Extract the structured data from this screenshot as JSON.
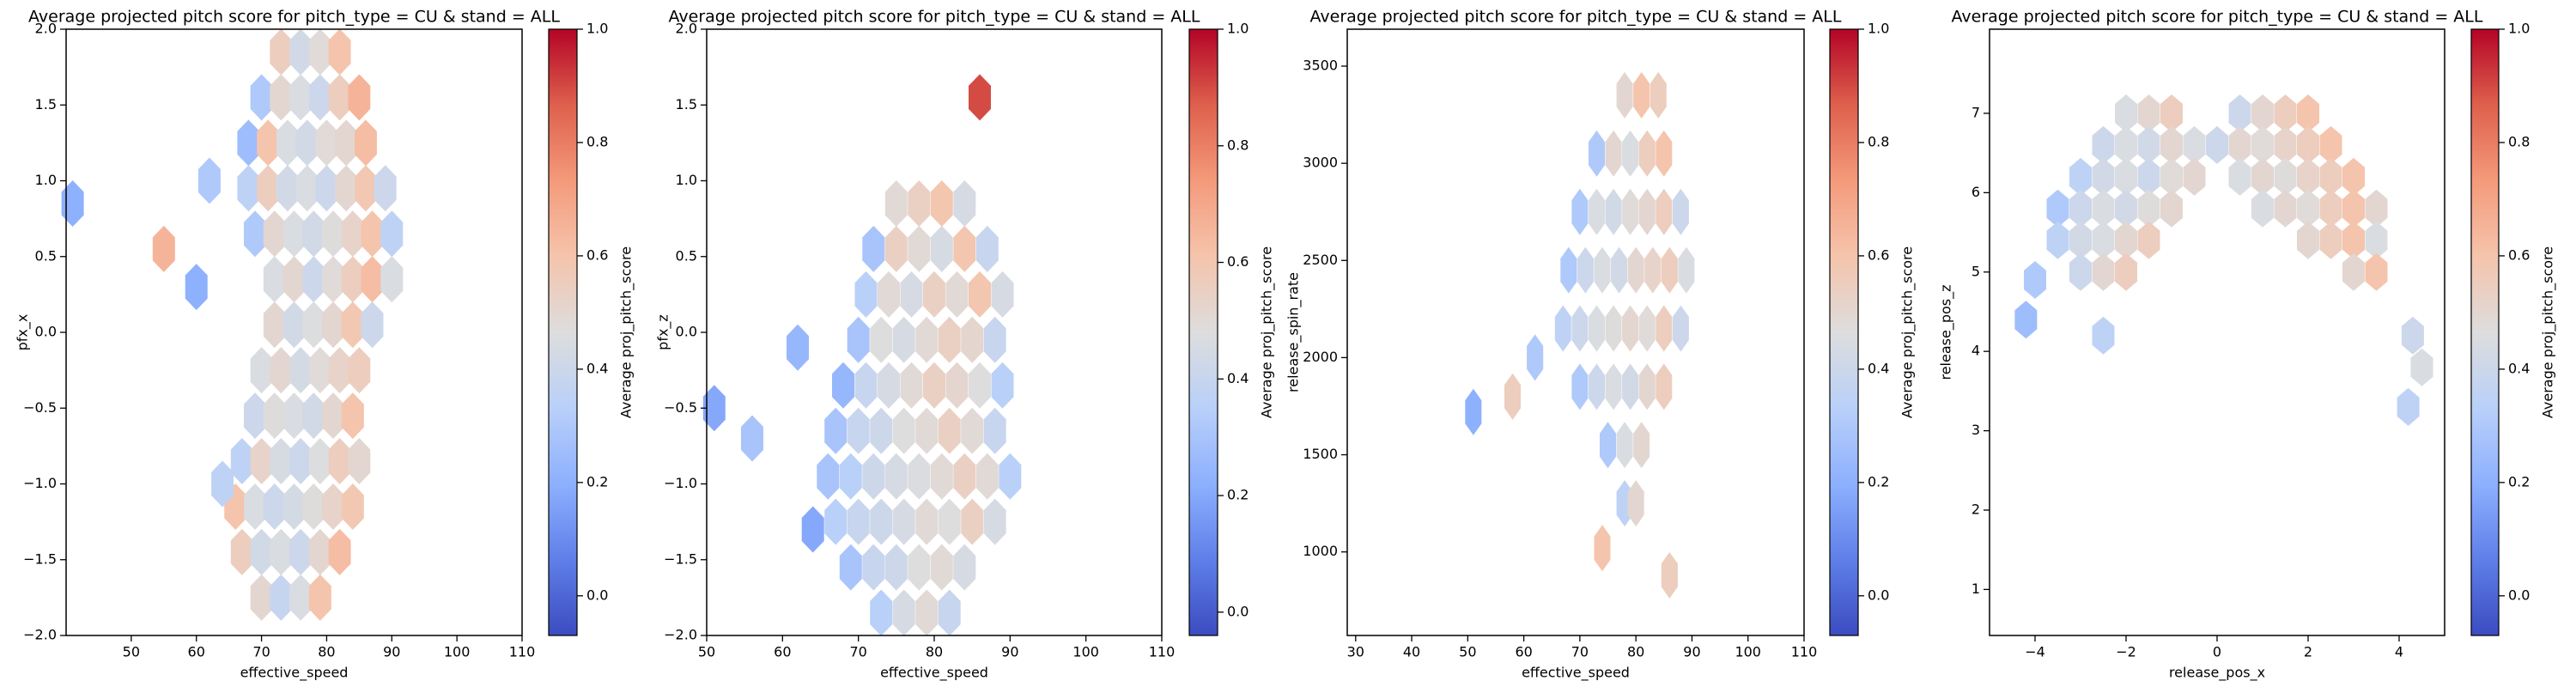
{
  "chart_data": [
    {
      "type": "hexbin",
      "title": "Average projected pitch score for pitch_type = CU & stand = ALL",
      "xlabel": "effective_speed",
      "ylabel": "pfx_x",
      "xlim": [
        40,
        110
      ],
      "ylim": [
        -2,
        2
      ],
      "xticks": [
        50,
        60,
        70,
        80,
        90,
        100,
        110
      ],
      "yticks": [
        {
          "value": -2,
          "label": "−2.0"
        },
        {
          "value": -1.5,
          "label": "−1.5"
        },
        {
          "value": -1,
          "label": "−1.0"
        },
        {
          "value": -0.5,
          "label": "−0.5"
        },
        {
          "value": 0,
          "label": "0.0"
        },
        0.5,
        {
          "value": 1,
          "label": "1.0"
        },
        1.5,
        {
          "value": 2,
          "label": "2.0"
        }
      ],
      "x": [
        73,
        76,
        79,
        82,
        70,
        73,
        76,
        79,
        82,
        85,
        68,
        71,
        74,
        77,
        80,
        83,
        86,
        68,
        71,
        74,
        77,
        80,
        83,
        86,
        89,
        69,
        72,
        75,
        78,
        81,
        84,
        87,
        90,
        72,
        75,
        78,
        81,
        84,
        87,
        90,
        72,
        75,
        78,
        81,
        84,
        87,
        70,
        73,
        76,
        79,
        82,
        85,
        69,
        72,
        75,
        78,
        81,
        84,
        67,
        70,
        73,
        76,
        79,
        82,
        85,
        66,
        69,
        72,
        75,
        78,
        81,
        84,
        67,
        70,
        73,
        76,
        79,
        82,
        70,
        73,
        76,
        79,
        62,
        55,
        41,
        64,
        60
      ],
      "y": [
        1.85,
        1.85,
        1.85,
        1.85,
        1.55,
        1.55,
        1.55,
        1.55,
        1.55,
        1.55,
        1.25,
        1.25,
        1.25,
        1.25,
        1.25,
        1.25,
        1.25,
        0.95,
        0.95,
        0.95,
        0.95,
        0.95,
        0.95,
        0.95,
        0.95,
        0.65,
        0.65,
        0.65,
        0.65,
        0.65,
        0.65,
        0.65,
        0.65,
        0.35,
        0.35,
        0.35,
        0.35,
        0.35,
        0.35,
        0.35,
        0.05,
        0.05,
        0.05,
        0.05,
        0.05,
        0.05,
        -0.25,
        -0.25,
        -0.25,
        -0.25,
        -0.25,
        -0.25,
        -0.55,
        -0.55,
        -0.55,
        -0.55,
        -0.55,
        -0.55,
        -0.85,
        -0.85,
        -0.85,
        -0.85,
        -0.85,
        -0.85,
        -0.85,
        -1.15,
        -1.15,
        -1.15,
        -1.15,
        -1.15,
        -1.15,
        -1.15,
        -1.45,
        -1.45,
        -1.45,
        -1.45,
        -1.45,
        -1.45,
        -1.75,
        -1.75,
        -1.75,
        -1.75,
        1.0,
        0.55,
        0.85,
        -1.0,
        0.3
      ],
      "values": [
        0.55,
        0.42,
        0.48,
        0.6,
        0.3,
        0.5,
        0.45,
        0.4,
        0.55,
        0.65,
        0.25,
        0.6,
        0.45,
        0.42,
        0.48,
        0.5,
        0.62,
        0.35,
        0.55,
        0.42,
        0.45,
        0.4,
        0.5,
        0.58,
        0.4,
        0.3,
        0.5,
        0.45,
        0.42,
        0.47,
        0.52,
        0.6,
        0.35,
        0.45,
        0.5,
        0.4,
        0.48,
        0.55,
        0.62,
        0.45,
        0.5,
        0.42,
        0.46,
        0.5,
        0.58,
        0.4,
        0.45,
        0.5,
        0.43,
        0.48,
        0.52,
        0.55,
        0.4,
        0.47,
        0.45,
        0.42,
        0.5,
        0.6,
        0.35,
        0.52,
        0.44,
        0.4,
        0.46,
        0.55,
        0.5,
        0.6,
        0.45,
        0.4,
        0.43,
        0.47,
        0.52,
        0.58,
        0.55,
        0.42,
        0.45,
        0.4,
        0.5,
        0.62,
        0.5,
        0.38,
        0.45,
        0.6,
        0.3,
        0.65,
        0.2,
        0.35,
        0.2
      ],
      "colorbar": {
        "label": "Average proj_pitch_score",
        "lim": [
          -0.07,
          1
        ],
        "ticks": [
          {
            "value": 0,
            "label": "0.0"
          },
          0.2,
          0.4,
          0.6,
          0.8,
          {
            "value": 1,
            "label": "1.0"
          }
        ]
      }
    },
    {
      "type": "hexbin",
      "title": "Average projected pitch score for pitch_type = CU & stand = ALL",
      "xlabel": "effective_speed",
      "ylabel": "pfx_z",
      "xlim": [
        50,
        110
      ],
      "ylim": [
        -2,
        2
      ],
      "xticks": [
        50,
        60,
        70,
        80,
        90,
        100,
        110
      ],
      "yticks": [
        {
          "value": -2,
          "label": "−2.0"
        },
        {
          "value": -1.5,
          "label": "−1.5"
        },
        {
          "value": -1,
          "label": "−1.0"
        },
        {
          "value": -0.5,
          "label": "−0.5"
        },
        {
          "value": 0,
          "label": "0.0"
        },
        0.5,
        {
          "value": 1,
          "label": "1.0"
        },
        1.5,
        {
          "value": 2,
          "label": "2.0"
        }
      ],
      "x": [
        75,
        78,
        81,
        84,
        72,
        75,
        78,
        81,
        84,
        87,
        71,
        74,
        77,
        80,
        83,
        86,
        89,
        70,
        73,
        76,
        79,
        82,
        85,
        88,
        68,
        71,
        74,
        77,
        80,
        83,
        86,
        89,
        67,
        70,
        73,
        76,
        79,
        82,
        85,
        88,
        66,
        69,
        72,
        75,
        78,
        81,
        84,
        87,
        90,
        67,
        70,
        73,
        76,
        79,
        82,
        85,
        88,
        69,
        72,
        75,
        78,
        81,
        84,
        73,
        76,
        79,
        82,
        51,
        56,
        62,
        86,
        64
      ],
      "y": [
        0.85,
        0.85,
        0.85,
        0.85,
        0.55,
        0.55,
        0.55,
        0.55,
        0.55,
        0.55,
        0.25,
        0.25,
        0.25,
        0.25,
        0.25,
        0.25,
        0.25,
        -0.05,
        -0.05,
        -0.05,
        -0.05,
        -0.05,
        -0.05,
        -0.05,
        -0.35,
        -0.35,
        -0.35,
        -0.35,
        -0.35,
        -0.35,
        -0.35,
        -0.35,
        -0.65,
        -0.65,
        -0.65,
        -0.65,
        -0.65,
        -0.65,
        -0.65,
        -0.65,
        -0.95,
        -0.95,
        -0.95,
        -0.95,
        -0.95,
        -0.95,
        -0.95,
        -0.95,
        -0.95,
        -1.25,
        -1.25,
        -1.25,
        -1.25,
        -1.25,
        -1.25,
        -1.25,
        -1.25,
        -1.55,
        -1.55,
        -1.55,
        -1.55,
        -1.55,
        -1.55,
        -1.85,
        -1.85,
        -1.85,
        -1.85,
        -0.5,
        -0.7,
        -0.1,
        1.55,
        -1.3
      ],
      "values": [
        0.5,
        0.55,
        0.6,
        0.45,
        0.3,
        0.55,
        0.5,
        0.45,
        0.6,
        0.4,
        0.35,
        0.5,
        0.45,
        0.55,
        0.5,
        0.6,
        0.45,
        0.3,
        0.48,
        0.45,
        0.5,
        0.55,
        0.52,
        0.4,
        0.25,
        0.4,
        0.45,
        0.5,
        0.55,
        0.52,
        0.48,
        0.35,
        0.3,
        0.4,
        0.42,
        0.48,
        0.5,
        0.55,
        0.5,
        0.4,
        0.3,
        0.35,
        0.42,
        0.45,
        0.47,
        0.5,
        0.55,
        0.5,
        0.35,
        0.35,
        0.4,
        0.42,
        0.45,
        0.5,
        0.48,
        0.55,
        0.45,
        0.3,
        0.4,
        0.42,
        0.48,
        0.5,
        0.45,
        0.35,
        0.45,
        0.5,
        0.4,
        0.2,
        0.3,
        0.25,
        0.9,
        0.2
      ],
      "colorbar": {
        "label": "Average proj_pitch_score",
        "lim": [
          -0.04,
          1
        ],
        "ticks": [
          {
            "value": 0,
            "label": "0.0"
          },
          0.2,
          0.4,
          0.6,
          0.8,
          {
            "value": 1,
            "label": "1.0"
          }
        ]
      }
    },
    {
      "type": "hexbin",
      "title": "Average projected pitch score for pitch_type = CU & stand = ALL",
      "xlabel": "effective_speed",
      "ylabel": "release_spin_rate",
      "xlim": [
        28.5,
        110
      ],
      "ylim": [
        570,
        3690
      ],
      "xticks": [
        30,
        40,
        50,
        60,
        70,
        80,
        90,
        100,
        110
      ],
      "yticks": [
        1000,
        1500,
        2000,
        2500,
        3000,
        3500
      ],
      "x": [
        78,
        81,
        84,
        73,
        76,
        79,
        82,
        85,
        70,
        73,
        76,
        79,
        82,
        85,
        88,
        68,
        71,
        74,
        77,
        80,
        83,
        86,
        89,
        67,
        70,
        73,
        76,
        79,
        82,
        85,
        88,
        70,
        73,
        76,
        79,
        82,
        85,
        75,
        78,
        81,
        78,
        80,
        51,
        58,
        62,
        74,
        86
      ],
      "y": [
        3350,
        3350,
        3350,
        3050,
        3050,
        3050,
        3050,
        3050,
        2750,
        2750,
        2750,
        2750,
        2750,
        2750,
        2750,
        2450,
        2450,
        2450,
        2450,
        2450,
        2450,
        2450,
        2450,
        2150,
        2150,
        2150,
        2150,
        2150,
        2150,
        2150,
        2150,
        1850,
        1850,
        1850,
        1850,
        1850,
        1850,
        1550,
        1550,
        1550,
        1250,
        1250,
        1720,
        1800,
        2000,
        1020,
        880
      ],
      "values": [
        0.5,
        0.6,
        0.55,
        0.3,
        0.5,
        0.45,
        0.55,
        0.6,
        0.3,
        0.45,
        0.42,
        0.48,
        0.5,
        0.55,
        0.4,
        0.3,
        0.4,
        0.45,
        0.42,
        0.5,
        0.52,
        0.55,
        0.45,
        0.35,
        0.4,
        0.45,
        0.47,
        0.5,
        0.48,
        0.55,
        0.4,
        0.3,
        0.4,
        0.45,
        0.42,
        0.5,
        0.55,
        0.3,
        0.45,
        0.5,
        0.35,
        0.5,
        0.2,
        0.55,
        0.3,
        0.6,
        0.55
      ],
      "colorbar": {
        "label": "Average proj_pitch_score",
        "lim": [
          -0.07,
          1
        ],
        "ticks": [
          {
            "value": 0,
            "label": "0.0"
          },
          0.2,
          0.4,
          0.6,
          0.8,
          {
            "value": 1,
            "label": "1.0"
          }
        ]
      }
    },
    {
      "type": "hexbin",
      "title": "Average projected pitch score for pitch_type = CU & stand = ALL",
      "xlabel": "release_pos_x",
      "ylabel": "release_pos_z",
      "xlim": [
        -5,
        5
      ],
      "ylim": [
        0.42,
        8.06
      ],
      "xticks": [
        {
          "value": -4,
          "label": "−4"
        },
        {
          "value": -2,
          "label": "−2"
        },
        0,
        2,
        4
      ],
      "yticks": [
        1,
        2,
        3,
        4,
        5,
        6,
        7
      ],
      "x": [
        -2.0,
        -1.5,
        -1.0,
        0.5,
        1.0,
        1.5,
        2.0,
        -2.5,
        -2.0,
        -1.5,
        -1.0,
        -0.5,
        0,
        0.5,
        1.0,
        1.5,
        2.0,
        2.5,
        -3.0,
        -2.5,
        -2.0,
        -1.5,
        -1.0,
        -0.5,
        0.5,
        1.0,
        1.5,
        2.0,
        2.5,
        3.0,
        -3.5,
        -3.0,
        -2.5,
        -2.0,
        -1.5,
        -1.0,
        1.0,
        1.5,
        2.0,
        2.5,
        3.0,
        3.5,
        -3.5,
        -3.0,
        -2.5,
        -2.0,
        -1.5,
        2.0,
        2.5,
        3.0,
        3.5,
        -3.0,
        -2.5,
        -2.0,
        3.0,
        3.5,
        -2.5,
        4.3,
        4.5,
        -4.0,
        -4.2,
        4.2
      ],
      "y": [
        7.0,
        7.0,
        7.0,
        7.0,
        7.0,
        7.0,
        7.0,
        6.6,
        6.6,
        6.6,
        6.6,
        6.6,
        6.6,
        6.6,
        6.6,
        6.6,
        6.6,
        6.6,
        6.2,
        6.2,
        6.2,
        6.2,
        6.2,
        6.2,
        6.2,
        6.2,
        6.2,
        6.2,
        6.2,
        6.2,
        5.8,
        5.8,
        5.8,
        5.8,
        5.8,
        5.8,
        5.8,
        5.8,
        5.8,
        5.8,
        5.8,
        5.8,
        5.4,
        5.4,
        5.4,
        5.4,
        5.4,
        5.4,
        5.4,
        5.4,
        5.4,
        5.0,
        5.0,
        5.0,
        5.0,
        5.0,
        4.2,
        4.2,
        3.8,
        4.9,
        4.4,
        3.3
      ],
      "values": [
        0.45,
        0.5,
        0.55,
        0.4,
        0.5,
        0.55,
        0.6,
        0.4,
        0.45,
        0.42,
        0.5,
        0.45,
        0.4,
        0.5,
        0.48,
        0.52,
        0.55,
        0.6,
        0.35,
        0.42,
        0.45,
        0.4,
        0.48,
        0.5,
        0.45,
        0.5,
        0.47,
        0.52,
        0.55,
        0.6,
        0.3,
        0.4,
        0.45,
        0.42,
        0.47,
        0.5,
        0.45,
        0.5,
        0.48,
        0.55,
        0.6,
        0.5,
        0.35,
        0.42,
        0.45,
        0.5,
        0.55,
        0.5,
        0.55,
        0.6,
        0.45,
        0.4,
        0.5,
        0.55,
        0.5,
        0.6,
        0.35,
        0.4,
        0.45,
        0.3,
        0.25,
        0.35
      ],
      "colorbar": {
        "label": "Average proj_pitch_score",
        "lim": [
          -0.07,
          1
        ],
        "ticks": [
          {
            "value": 0,
            "label": "0.0"
          },
          0.2,
          0.4,
          0.6,
          0.8,
          {
            "value": 1,
            "label": "1.0"
          }
        ]
      }
    }
  ]
}
